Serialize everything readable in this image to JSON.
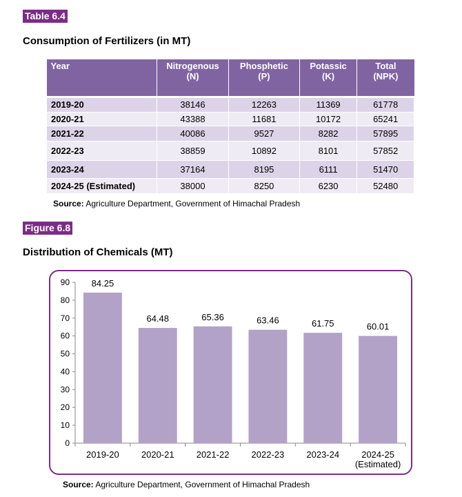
{
  "table_tag": "Table 6.4",
  "table_title": "Consumption of Fertilizers (in MT)",
  "table": {
    "headers": [
      {
        "line1": "Year",
        "line2": ""
      },
      {
        "line1": "Nitrogenous",
        "line2": "(N)"
      },
      {
        "line1": "Phosphetic",
        "line2": "(P)"
      },
      {
        "line1": "Potassic",
        "line2": "(K)"
      },
      {
        "line1": "Total",
        "line2": "(NPK)"
      }
    ],
    "rows": [
      [
        "2019-20",
        "38146",
        "12263",
        "11369",
        "61778"
      ],
      [
        "2020-21",
        "43388",
        "11681",
        "10172",
        "65241"
      ],
      [
        "2021-22",
        "40086",
        "9527",
        "8282",
        "57895"
      ],
      [
        "2022-23",
        "38859",
        "10892",
        "8101",
        "57852"
      ],
      [
        "2023-24",
        "37164",
        "8195",
        "6111",
        "51470"
      ],
      [
        "2024-25 (Estimated)",
        "38000",
        "8250",
        "6230",
        "52480"
      ]
    ]
  },
  "source_label": "Source:",
  "source_text": "Agriculture Department, Government of Himachal Pradesh",
  "figure_tag": "Figure 6.8",
  "figure_title": "Distribution of Chemicals (MT)",
  "colors": {
    "bar": "#b3a2c7",
    "accent": "#7b2c87",
    "header": "#8064a2"
  },
  "chart_data": {
    "type": "bar",
    "categories": [
      [
        "2019-20"
      ],
      [
        "2020-21"
      ],
      [
        "2021-22"
      ],
      [
        "2022-23"
      ],
      [
        "2023-24"
      ],
      [
        "2024-25",
        "(Estimated)"
      ]
    ],
    "values": [
      84.25,
      64.48,
      65.36,
      63.46,
      61.75,
      60.01
    ],
    "ylim": [
      0,
      90
    ],
    "yticks": [
      0,
      10,
      20,
      30,
      40,
      50,
      60,
      70,
      80,
      90
    ],
    "grid": false
  }
}
